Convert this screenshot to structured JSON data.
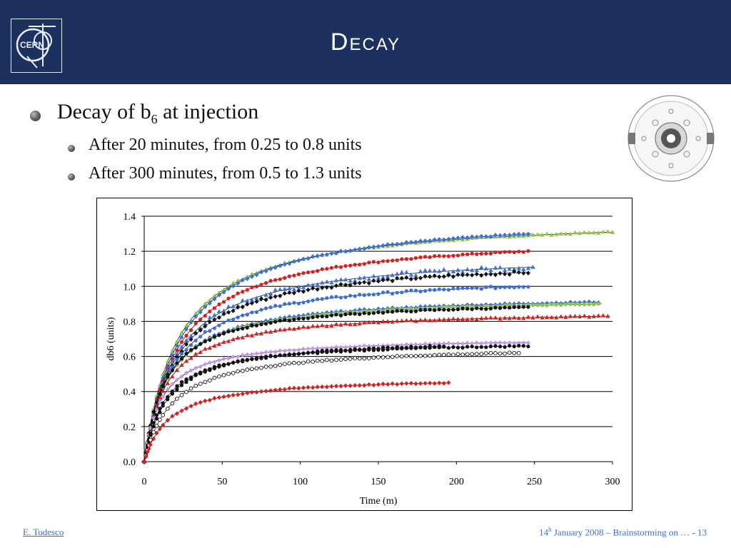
{
  "header": {
    "title": "Decay",
    "logo_text": "CERN"
  },
  "bullets": {
    "main_prefix": "Decay of b",
    "main_subscript": "6",
    "main_suffix": " at injection",
    "sub1": "After 20 minutes, from 0.25 to 0.8 units",
    "sub2": "After 300 minutes, from 0.5 to 1.3 units"
  },
  "footer": {
    "author": "E. Todesco",
    "date_day": "14",
    "date_sup": "h",
    "date_rest": " January 2008 – Brainstorming on  …  - 13"
  },
  "chart_data": {
    "type": "scatter",
    "xlabel": "Time (m)",
    "ylabel": "db6 (units)",
    "xlim": [
      0,
      300
    ],
    "ylim": [
      0,
      1.4
    ],
    "xticks": [
      0,
      50,
      100,
      150,
      200,
      250,
      300
    ],
    "yticks": [
      0.0,
      0.2,
      0.4,
      0.6,
      0.8,
      1.0,
      1.2,
      1.4
    ],
    "ytick_labels": [
      "0.0",
      "0.2",
      "0.4",
      "0.6",
      "0.8",
      "1.0",
      "1.2",
      "1.4"
    ],
    "grid": "horizontal",
    "series": [
      {
        "color": "#8dc63f",
        "marker": "triangle",
        "t_end": 300,
        "final": 1.31,
        "tau": 22,
        "noise": 0.004
      },
      {
        "color": "#3b6fe0",
        "marker": "diamond",
        "t_end": 248,
        "final": 1.3,
        "tau": 24,
        "noise": 0.004
      },
      {
        "color": "#e01b1b",
        "marker": "circle",
        "t_end": 246,
        "final": 1.2,
        "tau": 22,
        "noise": 0.004
      },
      {
        "color": "#3b6fe0",
        "marker": "triangle",
        "t_end": 250,
        "final": 1.11,
        "tau": 20,
        "noise": 0.012
      },
      {
        "color": "#111111",
        "marker": "diamond",
        "t_end": 246,
        "final": 1.08,
        "tau": 20,
        "noise": 0.008
      },
      {
        "color": "#3b6fe0",
        "marker": "circle",
        "t_end": 246,
        "final": 1.0,
        "tau": 18,
        "noise": 0.006
      },
      {
        "color": "#3b6fe0",
        "marker": "diamond",
        "t_end": 292,
        "final": 0.91,
        "tau": 15,
        "noise": 0.004
      },
      {
        "color": "#8dc63f",
        "marker": "circle",
        "t_end": 293,
        "final": 0.9,
        "tau": 15,
        "noise": 0.004
      },
      {
        "color": "#111111",
        "marker": "circle",
        "t_end": 246,
        "final": 0.88,
        "tau": 14,
        "noise": 0.004
      },
      {
        "color": "#e01b1b",
        "marker": "triangle",
        "t_end": 298,
        "final": 0.83,
        "tau": 14,
        "noise": 0.004
      },
      {
        "color": "#c994f0",
        "marker": "diamond",
        "t_end": 246,
        "final": 0.68,
        "tau": 11,
        "noise": 0.003
      },
      {
        "color": "#111111",
        "marker": "circle",
        "t_end": 246,
        "final": 0.66,
        "tau": 13,
        "noise": 0.004
      },
      {
        "color": "#111111",
        "marker": "circle",
        "t_end": 193,
        "final": 0.66,
        "tau": 15,
        "noise": 0.004
      },
      {
        "color": "#111111",
        "marker": "open-circle",
        "t_end": 240,
        "final": 0.62,
        "tau": 18,
        "noise": 0.003
      },
      {
        "color": "#e01b1b",
        "marker": "diamond",
        "t_end": 196,
        "final": 0.45,
        "tau": 16,
        "noise": 0.003
      }
    ]
  }
}
